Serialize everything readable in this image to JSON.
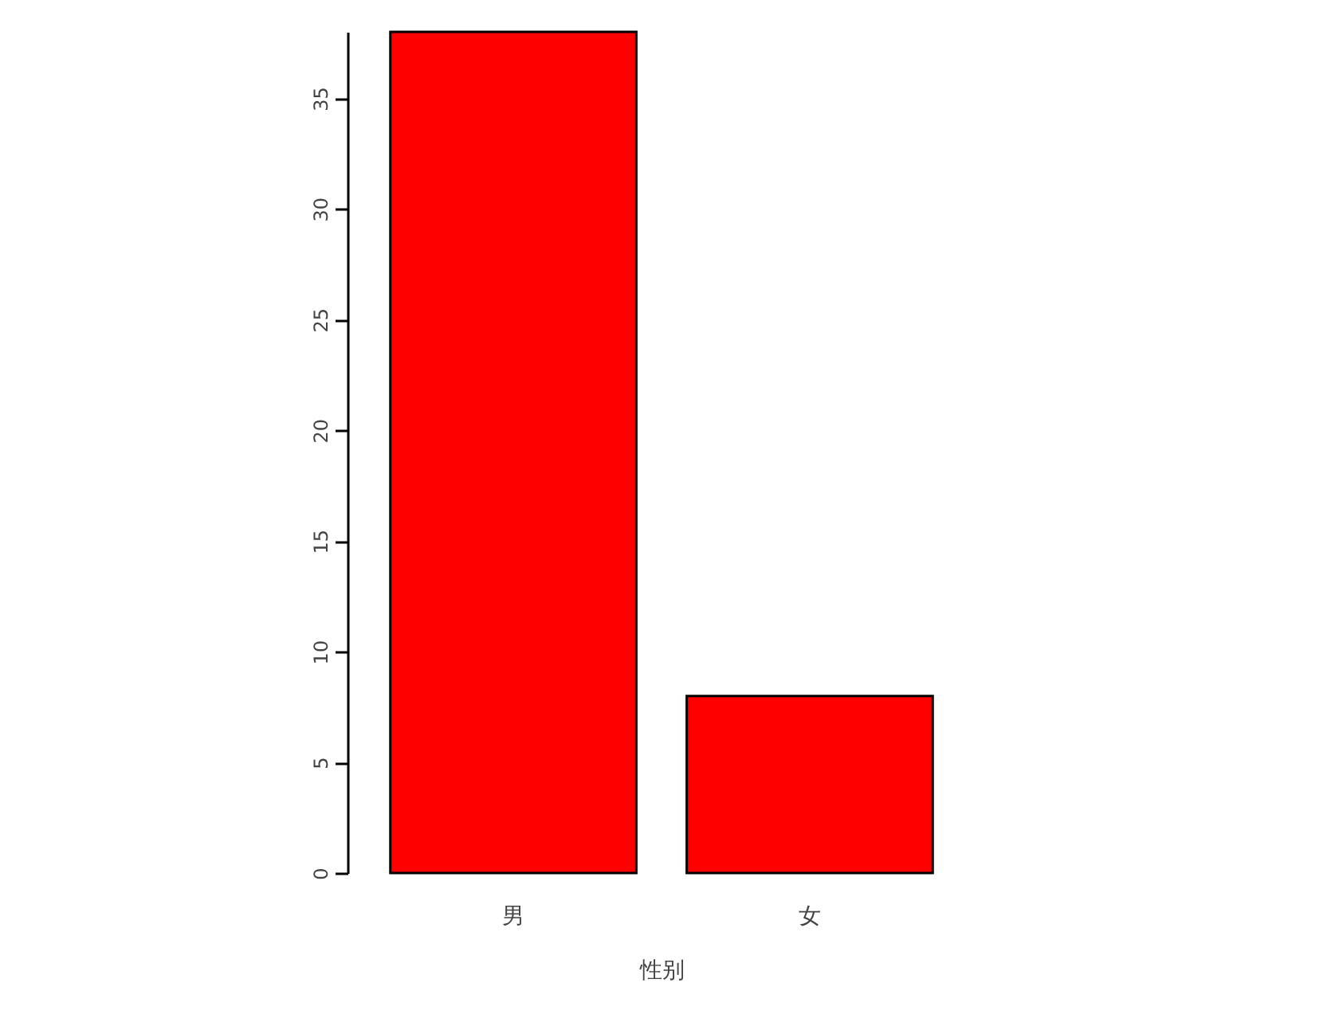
{
  "chart_data": {
    "type": "bar",
    "xlabel": "性别",
    "categories": [
      "男",
      "女"
    ],
    "values": [
      38,
      8
    ],
    "color": "#ff0000",
    "ylim": [
      0,
      38
    ],
    "yticks": [
      0,
      5,
      10,
      15,
      20,
      25,
      30,
      35
    ],
    "grid": false
  }
}
